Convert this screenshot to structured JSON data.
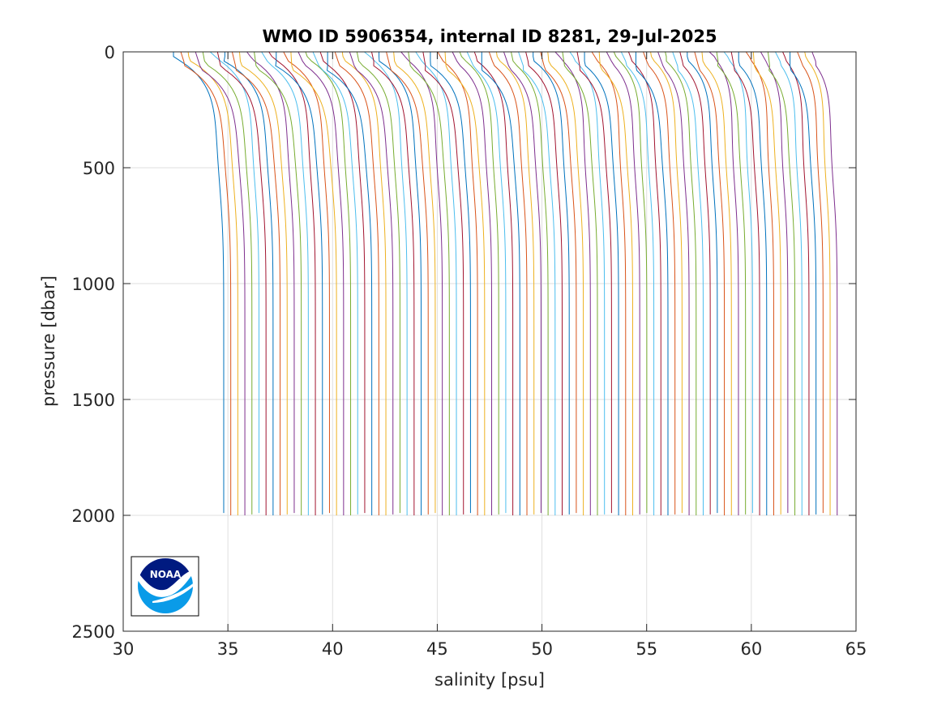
{
  "chart_data": {
    "type": "line",
    "title": "WMO ID 5906354, internal ID 8281, 29-Jul-2025",
    "xlabel": "salinity [psu]",
    "ylabel": "pressure [dbar]",
    "xlim": [
      30,
      65
    ],
    "ylim": [
      0,
      2500
    ],
    "y_reversed": true,
    "grid": true,
    "x_ticks": [
      "30",
      "35",
      "40",
      "45",
      "50",
      "55",
      "60",
      "65"
    ],
    "y_ticks": [
      "0",
      "500",
      "1000",
      "1500",
      "2000",
      "2500"
    ],
    "note_profiles_offset": "Successive salinity profiles plotted with cumulative horizontal offsets; 88 profiles shown",
    "profile_count": 88,
    "profile_surface_salinity_first": 32.4,
    "profile_surface_salinity_last": 62.9,
    "profile_deep_salinity_first": 34.8,
    "profile_deep_salinity_last": 64.1,
    "typical_max_pressure": 2000,
    "series_colors": [
      "#0072bd",
      "#d95319",
      "#edb120",
      "#7e2f8e",
      "#77ac30",
      "#4dbeee",
      "#a2142f"
    ]
  },
  "logo": {
    "text": "NOAA",
    "outer_color": "#001a80",
    "wave_color": "#0a9be8"
  }
}
